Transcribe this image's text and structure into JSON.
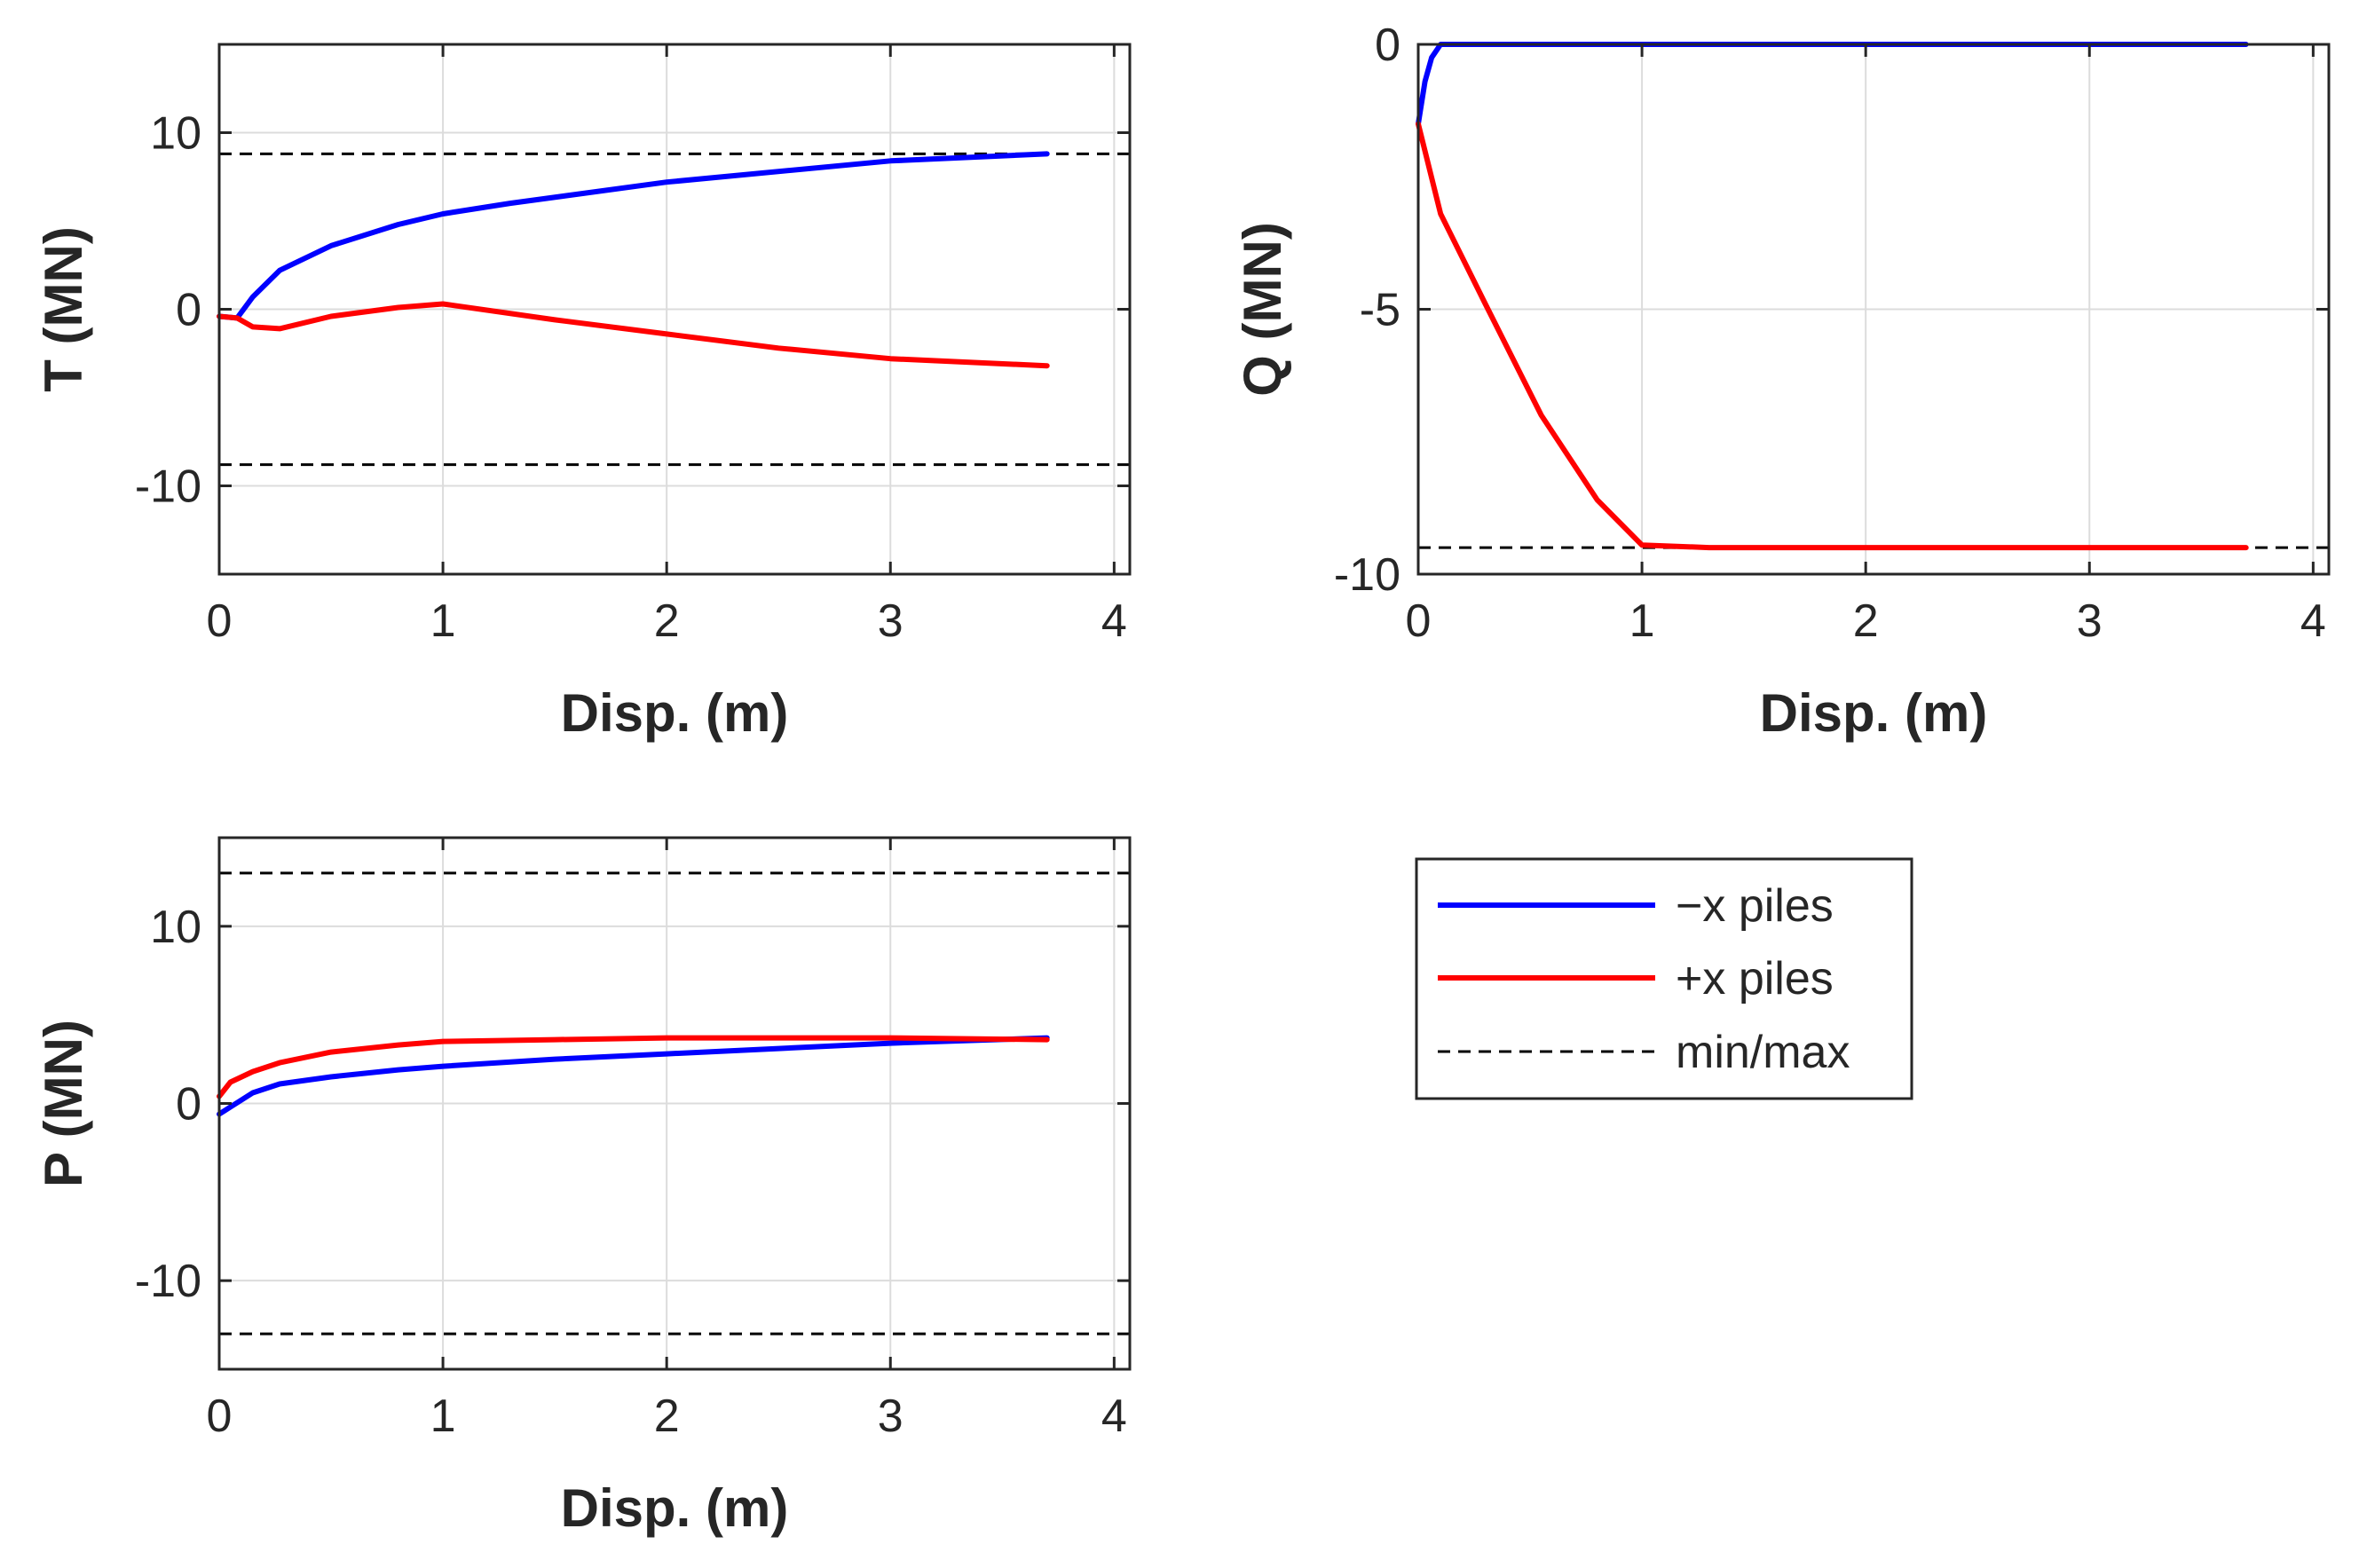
{
  "colors": {
    "minus_x": "#0000ff",
    "plus_x": "#ff0000",
    "limit": "#000000",
    "axis": "#262626",
    "grid": "#dcdcdc"
  },
  "legend": {
    "entries": [
      {
        "label": "−x piles",
        "color": "#0000ff",
        "style": "solid"
      },
      {
        "label": "+x piles",
        "color": "#ff0000",
        "style": "solid"
      },
      {
        "label": "min/max",
        "color": "#000000",
        "style": "dashed"
      }
    ]
  },
  "chart_data": [
    {
      "id": "T",
      "type": "line",
      "xlabel": "Disp. (m)",
      "ylabel": "T (MN)",
      "xlim": [
        0,
        4.07
      ],
      "ylim": [
        -15,
        15
      ],
      "xticks": [
        0,
        1,
        2,
        3,
        4
      ],
      "yticks": [
        -10,
        0,
        10
      ],
      "ytick_labels": [
        "-10",
        "0",
        "10"
      ],
      "grid": true,
      "series": [
        {
          "name": "−x piles",
          "color": "#0000ff",
          "x": [
            0,
            0.08,
            0.15,
            0.27,
            0.5,
            0.8,
            1.0,
            1.3,
            2.0,
            3.0,
            3.7
          ],
          "y": [
            -0.4,
            -0.5,
            0.7,
            2.2,
            3.6,
            4.8,
            5.4,
            6.0,
            7.2,
            8.4,
            8.8
          ]
        },
        {
          "name": "+x piles",
          "color": "#ff0000",
          "x": [
            0,
            0.08,
            0.15,
            0.27,
            0.5,
            0.8,
            1.0,
            1.5,
            2.0,
            2.5,
            3.0,
            3.7
          ],
          "y": [
            -0.4,
            -0.5,
            -1.0,
            -1.1,
            -0.4,
            0.1,
            0.3,
            -0.6,
            -1.4,
            -2.2,
            -2.8,
            -3.2
          ]
        }
      ],
      "hlines": [
        {
          "name": "min/max",
          "y": 8.8
        },
        {
          "name": "min/max",
          "y": -8.8
        }
      ]
    },
    {
      "id": "Q",
      "type": "line",
      "xlabel": "Disp. (m)",
      "ylabel": "Q (MN)",
      "xlim": [
        0,
        4.07
      ],
      "ylim": [
        -10,
        0
      ],
      "xticks": [
        0,
        1,
        2,
        3,
        4
      ],
      "yticks": [
        -10,
        -5,
        0
      ],
      "ytick_labels": [
        "-10",
        "-5",
        "0"
      ],
      "grid": true,
      "series": [
        {
          "name": "−x piles",
          "color": "#0000ff",
          "x": [
            0,
            0.03,
            0.06,
            0.1,
            0.15,
            3.7
          ],
          "y": [
            -1.5,
            -0.7,
            -0.25,
            0,
            0,
            0
          ]
        },
        {
          "name": "+x piles",
          "color": "#ff0000",
          "x": [
            0,
            0.1,
            0.3,
            0.55,
            0.8,
            1.0,
            1.3,
            2.0,
            3.0,
            3.7
          ],
          "y": [
            -1.5,
            -3.2,
            -4.9,
            -7.0,
            -8.6,
            -9.45,
            -9.5,
            -9.5,
            -9.5,
            -9.5
          ]
        }
      ],
      "hlines": [
        {
          "name": "min/max",
          "y": 0
        },
        {
          "name": "min/max",
          "y": -9.5
        }
      ]
    },
    {
      "id": "P",
      "type": "line",
      "xlabel": "Disp. (m)",
      "ylabel": "P (MN)",
      "xlim": [
        0,
        4.07
      ],
      "ylim": [
        -15,
        15
      ],
      "xticks": [
        0,
        1,
        2,
        3,
        4
      ],
      "yticks": [
        -10,
        0,
        10
      ],
      "ytick_labels": [
        "-10",
        "0",
        "10"
      ],
      "grid": true,
      "series": [
        {
          "name": "−x piles",
          "color": "#0000ff",
          "x": [
            0,
            0.05,
            0.15,
            0.27,
            0.5,
            0.8,
            1.0,
            1.5,
            2.0,
            2.5,
            3.0,
            3.7
          ],
          "y": [
            -0.6,
            -0.2,
            0.6,
            1.1,
            1.5,
            1.9,
            2.1,
            2.5,
            2.8,
            3.1,
            3.4,
            3.7
          ]
        },
        {
          "name": "+x piles",
          "color": "#ff0000",
          "x": [
            0,
            0.05,
            0.15,
            0.27,
            0.5,
            0.8,
            1.0,
            1.5,
            2.0,
            2.5,
            3.0,
            3.7
          ],
          "y": [
            0.4,
            1.2,
            1.8,
            2.3,
            2.9,
            3.3,
            3.5,
            3.6,
            3.7,
            3.7,
            3.7,
            3.6
          ]
        }
      ],
      "hlines": [
        {
          "name": "min/max",
          "y": 13
        },
        {
          "name": "min/max",
          "y": -13
        }
      ]
    }
  ]
}
